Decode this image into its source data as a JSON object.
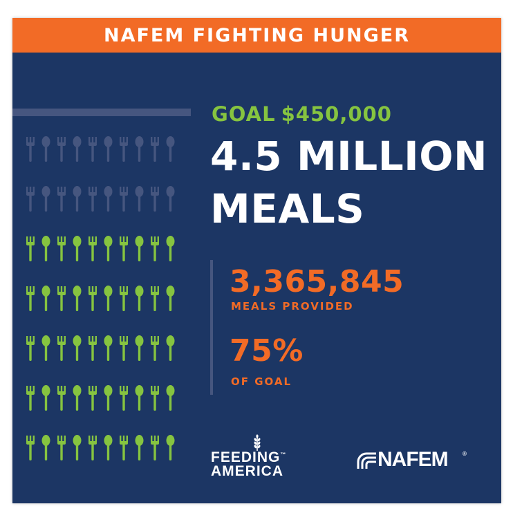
{
  "banner": {
    "title": "NAFEM FIGHTING HUNGER"
  },
  "goal": {
    "label": "GOAL",
    "amount": "$450,000"
  },
  "headline": {
    "line1": "4.5 MILLION",
    "line2": "MEALS"
  },
  "stats": {
    "meals_provided_value": "3,365,845",
    "meals_provided_label": "MEALS PROVIDED",
    "percent_value": "75%",
    "percent_label": "OF GOAL"
  },
  "utensil_grid": {
    "rows": 7,
    "per_row": 10,
    "filled_rows": 5,
    "filled_fraction": 0.75,
    "pattern": [
      "fork-icon",
      "spoon-icon"
    ],
    "colors": {
      "filled": "#86c440",
      "empty": "#46567f"
    }
  },
  "logos": {
    "feeding_america": {
      "line1": "FEEDING",
      "line2": "AMERICA",
      "mark": "™",
      "icon": "wheat-icon"
    },
    "nafem": {
      "wordmark": "NAFEM",
      "mark": "®",
      "icon": "arcs-icon"
    }
  },
  "colors": {
    "background": "#1c3664",
    "accent_orange": "#f26b26",
    "accent_green": "#86c440",
    "muted": "#46567f"
  }
}
